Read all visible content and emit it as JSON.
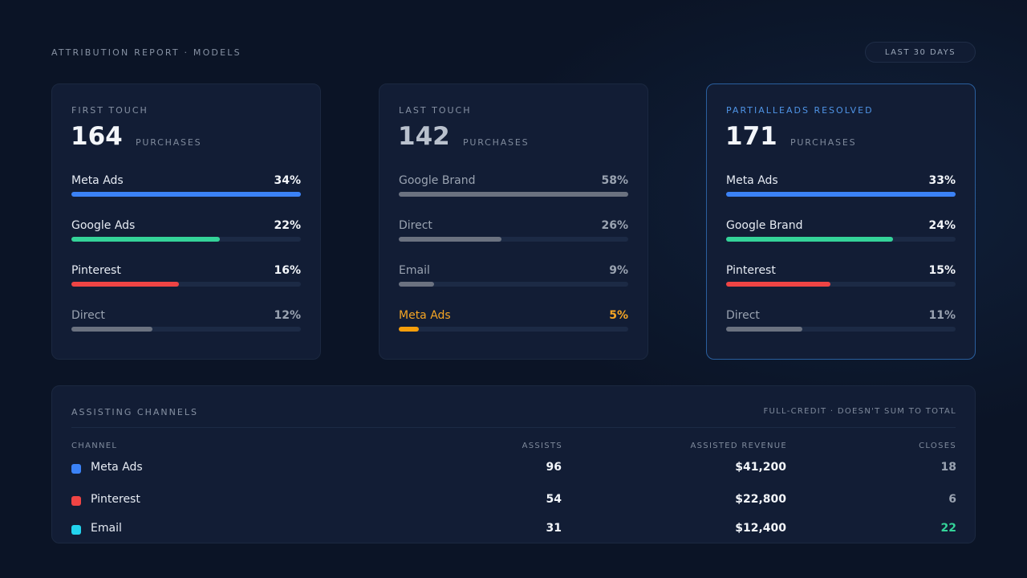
{
  "header": {
    "title": "ATTRIBUTION REPORT · MODELS",
    "range_label": "LAST 30 DAYS"
  },
  "models": [
    {
      "title": "FIRST TOUCH",
      "count": "164",
      "unit": "PURCHASES",
      "rows": [
        {
          "label": "Meta Ads",
          "pct": "34%",
          "fraction": 1.0,
          "color": "#3b82f6"
        },
        {
          "label": "Google Ads",
          "pct": "22%",
          "fraction": 0.647,
          "color": "#34d399"
        },
        {
          "label": "Pinterest",
          "pct": "16%",
          "fraction": 0.47,
          "color": "#ef4444"
        },
        {
          "label": "Direct",
          "pct": "12%",
          "fraction": 0.353,
          "color": "#6b7280"
        }
      ]
    },
    {
      "title": "LAST TOUCH",
      "count": "142",
      "unit": "PURCHASES",
      "rows": [
        {
          "label": "Google Brand",
          "pct": "58%",
          "fraction": 1.0,
          "color": "#6b7280"
        },
        {
          "label": "Direct",
          "pct": "26%",
          "fraction": 0.448,
          "color": "#6b7280"
        },
        {
          "label": "Email",
          "pct": "9%",
          "fraction": 0.155,
          "color": "#6b7280"
        },
        {
          "label": "Meta Ads",
          "pct": "5%",
          "fraction": 0.086,
          "color": "#f59e0b"
        }
      ]
    },
    {
      "title": "PARTIALLEADS RESOLVED",
      "count": "171",
      "unit": "PURCHASES",
      "rows": [
        {
          "label": "Meta Ads",
          "pct": "33%",
          "fraction": 1.0,
          "color": "#3b82f6"
        },
        {
          "label": "Google Brand",
          "pct": "24%",
          "fraction": 0.727,
          "color": "#34d399"
        },
        {
          "label": "Pinterest",
          "pct": "15%",
          "fraction": 0.455,
          "color": "#ef4444"
        },
        {
          "label": "Direct",
          "pct": "11%",
          "fraction": 0.333,
          "color": "#6b7280"
        }
      ]
    }
  ],
  "assisting": {
    "title": "ASSISTING CHANNELS",
    "note": "FULL-CREDIT · DOESN'T SUM TO TOTAL",
    "columns": {
      "channel": "CHANNEL",
      "assists": "ASSISTS",
      "revenue": "ASSISTED REVENUE",
      "closes": "CLOSES"
    },
    "rows": [
      {
        "channel": "Meta Ads",
        "color": "#3b82f6",
        "assists": "96",
        "revenue": "$41,200",
        "closes": "18",
        "closes_color": "#9aa3b1"
      },
      {
        "channel": "Pinterest",
        "color": "#ef4444",
        "assists": "54",
        "revenue": "$22,800",
        "closes": "6",
        "closes_color": "#9aa3b1"
      },
      {
        "channel": "Email",
        "color": "#22d3ee",
        "assists": "31",
        "revenue": "$12,400",
        "closes": "22",
        "closes_color": "#34d399"
      }
    ]
  }
}
